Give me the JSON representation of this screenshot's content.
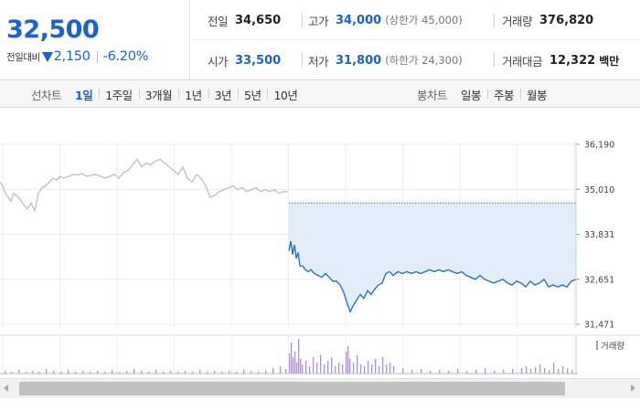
{
  "header": {
    "price": "32,500",
    "change_label": "전일대비",
    "change_value": "2,150",
    "change_pct": "-6.20%",
    "prev_close": {
      "label": "전일",
      "value": "34,650"
    },
    "high": {
      "label": "고가",
      "value": "34,000",
      "limit": "(상한가 45,000)"
    },
    "volume": {
      "label": "거래량",
      "value": "376,820"
    },
    "open": {
      "label": "시가",
      "value": "33,500"
    },
    "low": {
      "label": "저가",
      "value": "31,800",
      "limit": "(하한가 24,300)"
    },
    "amount": {
      "label": "거래대금",
      "value": "12,322",
      "unit": "백만"
    }
  },
  "tabs": {
    "line_chart": {
      "title": "선차트",
      "items": [
        "1일",
        "1주일",
        "3개월",
        "1년",
        "3년",
        "5년",
        "10년"
      ],
      "active": 0
    },
    "candle_chart": {
      "title": "봉차트",
      "items": [
        "일봉",
        "주봉",
        "월봉"
      ]
    }
  },
  "colors": {
    "price_blue": "#1b61d1",
    "prev_line": "#c2c2c2",
    "today_line": "#2e6fc1",
    "fill": "#e3edfa",
    "volume": "#a995c4"
  },
  "chart_data": {
    "type": "line",
    "yticks": [
      "36,190",
      "35,010",
      "33,831",
      "32,651",
      "31,471"
    ],
    "ylim": [
      31471,
      36190
    ],
    "reference_line": 34650,
    "legend": "거래량",
    "grid": true,
    "series": [
      {
        "x": [
          0,
          3,
          6,
          9,
          12,
          15,
          18,
          22,
          26,
          30,
          34,
          38,
          42,
          46,
          50,
          54,
          58,
          62,
          66,
          70,
          75,
          80,
          85,
          90,
          95,
          100,
          105,
          110,
          115,
          120,
          125,
          130,
          135,
          140,
          145,
          150,
          155,
          160,
          165,
          170,
          175,
          180,
          185,
          190,
          195,
          200,
          205,
          210,
          215,
          220,
          225,
          230,
          235,
          240,
          245,
          250,
          255,
          260,
          265,
          270,
          275,
          280,
          285,
          290,
          295,
          300,
          305,
          310,
          315
        ],
        "y": [
          35200,
          35100,
          34900,
          34800,
          34700,
          34900,
          34850,
          34750,
          34600,
          34500,
          34650,
          34450,
          34900,
          35050,
          35100,
          35200,
          35300,
          35250,
          35350,
          35300,
          35350,
          35400,
          35380,
          35420,
          35350,
          35380,
          35400,
          35350,
          35300,
          35350,
          35400,
          35300,
          35450,
          35500,
          35650,
          35800,
          35600,
          35700,
          35650,
          35750,
          35800,
          35700,
          35600,
          35500,
          35400,
          35600,
          35300,
          35200,
          35400,
          35300,
          35100,
          34800,
          34850,
          34950,
          35000,
          35050,
          35100,
          35000,
          35050,
          34950,
          35000,
          35050,
          34950,
          35000,
          34950,
          35000,
          34900,
          34950,
          34950
        ]
      },
      {
        "x": [
          316,
          318,
          320,
          322,
          324,
          326,
          328,
          331,
          334,
          337,
          340,
          344,
          348,
          352,
          356,
          360,
          364,
          368,
          372,
          376,
          380,
          383,
          386,
          390,
          394,
          398,
          402,
          406,
          410,
          414,
          418,
          422,
          426,
          430,
          435,
          440,
          445,
          450,
          455,
          460,
          465,
          470,
          475,
          480,
          485,
          490,
          495,
          500,
          505,
          510,
          515,
          520,
          525,
          530,
          535,
          540,
          545,
          550,
          555,
          560,
          565,
          570,
          575,
          580,
          585,
          590,
          595,
          600,
          605,
          610,
          615,
          620,
          625,
          630
        ],
        "y": [
          33400,
          33650,
          33300,
          33550,
          33200,
          33350,
          33000,
          33000,
          32900,
          32850,
          32900,
          32800,
          32750,
          32700,
          32800,
          32700,
          32600,
          32600,
          32500,
          32300,
          32000,
          31800,
          31950,
          32100,
          32250,
          32150,
          32350,
          32250,
          32400,
          32500,
          32550,
          32800,
          32850,
          32750,
          32850,
          32800,
          32850,
          32800,
          32850,
          32800,
          32850,
          32900,
          32850,
          32900,
          32850,
          32900,
          32850,
          32800,
          32850,
          32750,
          32700,
          32650,
          32750,
          32650,
          32600,
          32550,
          32600,
          32650,
          32550,
          32500,
          32600,
          32550,
          32450,
          32600,
          32500,
          32550,
          32650,
          32450,
          32500,
          32450,
          32500,
          32450,
          32600,
          32650
        ]
      }
    ],
    "volume": {
      "x": [
        5,
        12,
        20,
        28,
        35,
        42,
        50,
        58,
        66,
        74,
        82,
        90,
        98,
        106,
        114,
        122,
        130,
        138,
        146,
        154,
        162,
        170,
        178,
        186,
        194,
        202,
        210,
        218,
        226,
        234,
        242,
        250,
        258,
        266,
        274,
        282,
        290,
        298,
        306,
        312,
        316,
        318,
        320,
        322,
        324,
        326,
        328,
        330,
        334,
        338,
        342,
        346,
        350,
        354,
        358,
        362,
        366,
        370,
        374,
        378,
        380,
        382,
        386,
        390,
        394,
        398,
        402,
        406,
        410,
        414,
        418,
        422,
        426,
        430,
        440,
        450,
        460,
        470,
        480,
        490,
        500,
        510,
        520,
        530,
        540,
        550,
        560,
        570,
        575,
        580,
        585,
        590,
        595,
        600,
        605,
        610,
        615,
        620,
        625
      ],
      "v": [
        3,
        2,
        4,
        2,
        3,
        2,
        5,
        3,
        2,
        4,
        2,
        3,
        2,
        3,
        2,
        4,
        2,
        3,
        5,
        3,
        2,
        4,
        2,
        3,
        2,
        3,
        2,
        4,
        2,
        3,
        2,
        3,
        2,
        4,
        3,
        2,
        4,
        6,
        8,
        5,
        22,
        34,
        18,
        24,
        12,
        38,
        16,
        10,
        14,
        8,
        18,
        12,
        20,
        10,
        14,
        18,
        8,
        12,
        10,
        24,
        30,
        16,
        12,
        20,
        10,
        8,
        14,
        10,
        16,
        8,
        18,
        10,
        12,
        8,
        6,
        4,
        5,
        3,
        4,
        3,
        5,
        3,
        4,
        6,
        3,
        4,
        5,
        6,
        8,
        5,
        7,
        10,
        6,
        4,
        12,
        5,
        8,
        6,
        4
      ]
    }
  }
}
